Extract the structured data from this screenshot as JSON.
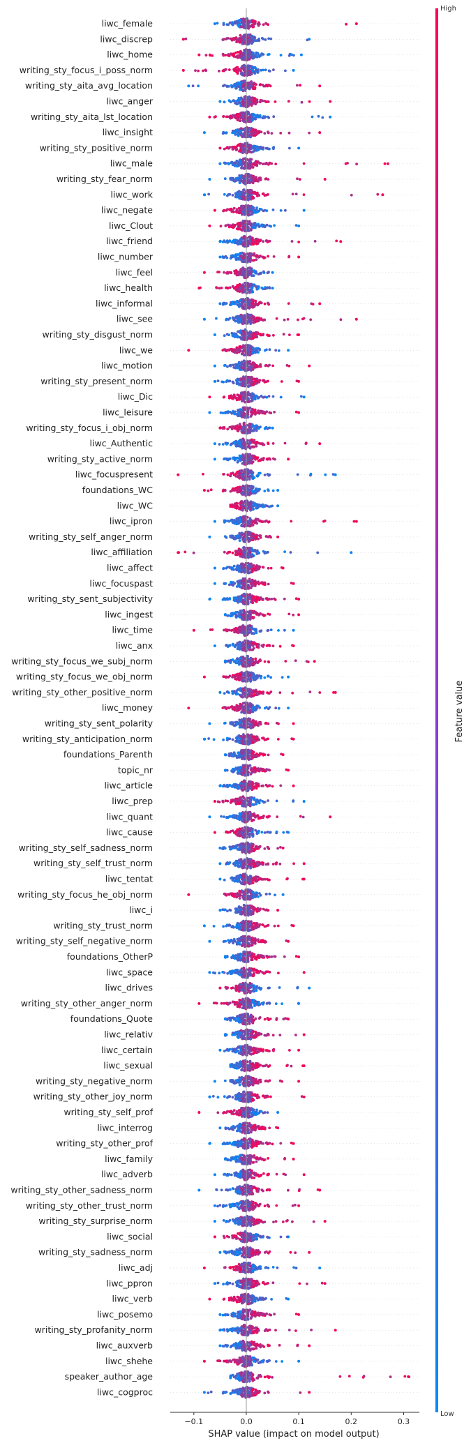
{
  "chart_data": {
    "type": "scatter",
    "subtype": "shap-beeswarm-summary",
    "xlabel": "SHAP value (impact on model output)",
    "xticks": [
      -0.1,
      0.0,
      0.1,
      0.2,
      0.3
    ],
    "xlim": [
      -0.145,
      0.33
    ],
    "colorbar": {
      "label": "Feature value",
      "high_label": "High",
      "low_label": "Low",
      "high_color": "#ff0052",
      "low_color": "#008bfb"
    },
    "grid": false,
    "features": [
      {
        "name": "liwc_female",
        "min": -0.06,
        "max": 0.21,
        "high": "right"
      },
      {
        "name": "liwc_discrep",
        "min": -0.12,
        "max": 0.12,
        "high": "left"
      },
      {
        "name": "liwc_home",
        "min": -0.09,
        "max": 0.105,
        "high": "left"
      },
      {
        "name": "writing_sty_focus_i_poss_norm",
        "min": -0.12,
        "max": 0.09,
        "high": "left"
      },
      {
        "name": "writing_sty_aita_avg_location",
        "min": -0.11,
        "max": 0.14,
        "high": "right"
      },
      {
        "name": "liwc_anger",
        "min": -0.05,
        "max": 0.16,
        "high": "right"
      },
      {
        "name": "writing_sty_aita_lst_location",
        "min": -0.07,
        "max": 0.16,
        "high": "left"
      },
      {
        "name": "liwc_insight",
        "min": -0.08,
        "max": 0.14,
        "high": "right"
      },
      {
        "name": "writing_sty_positive_norm",
        "min": -0.05,
        "max": 0.1,
        "high": "left"
      },
      {
        "name": "liwc_male",
        "min": -0.05,
        "max": 0.27,
        "high": "right"
      },
      {
        "name": "writing_sty_fear_norm",
        "min": -0.07,
        "max": 0.15,
        "high": "right"
      },
      {
        "name": "liwc_work",
        "min": -0.08,
        "max": 0.26,
        "high": "right"
      },
      {
        "name": "liwc_negate",
        "min": -0.06,
        "max": 0.11,
        "high": "left"
      },
      {
        "name": "liwc_Clout",
        "min": -0.07,
        "max": 0.1,
        "high": "left"
      },
      {
        "name": "liwc_friend",
        "min": -0.05,
        "max": 0.18,
        "high": "right"
      },
      {
        "name": "liwc_number",
        "min": -0.05,
        "max": 0.1,
        "high": "right"
      },
      {
        "name": "liwc_feel",
        "min": -0.08,
        "max": 0.05,
        "high": "left"
      },
      {
        "name": "liwc_health",
        "min": -0.09,
        "max": 0.05,
        "high": "left"
      },
      {
        "name": "liwc_informal",
        "min": -0.05,
        "max": 0.14,
        "high": "right"
      },
      {
        "name": "liwc_see",
        "min": -0.08,
        "max": 0.21,
        "high": "right"
      },
      {
        "name": "writing_sty_disgust_norm",
        "min": -0.06,
        "max": 0.1,
        "high": "right"
      },
      {
        "name": "liwc_we",
        "min": -0.11,
        "max": 0.08,
        "high": "left"
      },
      {
        "name": "liwc_motion",
        "min": -0.06,
        "max": 0.12,
        "high": "right"
      },
      {
        "name": "writing_sty_present_norm",
        "min": -0.06,
        "max": 0.1,
        "high": "right"
      },
      {
        "name": "liwc_Dic",
        "min": -0.07,
        "max": 0.11,
        "high": "left"
      },
      {
        "name": "liwc_leisure",
        "min": -0.07,
        "max": 0.1,
        "high": "right"
      },
      {
        "name": "writing_sty_focus_i_obj_norm",
        "min": -0.05,
        "max": 0.05,
        "high": "left"
      },
      {
        "name": "liwc_Authentic",
        "min": -0.06,
        "max": 0.14,
        "high": "right"
      },
      {
        "name": "writing_sty_active_norm",
        "min": -0.06,
        "max": 0.08,
        "high": "right"
      },
      {
        "name": "liwc_focuspresent",
        "min": -0.13,
        "max": 0.17,
        "high": "left"
      },
      {
        "name": "foundations_WC",
        "min": -0.08,
        "max": 0.06,
        "high": "left"
      },
      {
        "name": "liwc_WC",
        "min": -0.03,
        "max": 0.06,
        "high": "left"
      },
      {
        "name": "liwc_ipron",
        "min": -0.06,
        "max": 0.21,
        "high": "right"
      },
      {
        "name": "writing_sty_self_anger_norm",
        "min": -0.07,
        "max": 0.06,
        "high": "right"
      },
      {
        "name": "liwc_affiliation",
        "min": -0.13,
        "max": 0.2,
        "high": "left"
      },
      {
        "name": "liwc_affect",
        "min": -0.06,
        "max": 0.07,
        "high": "right"
      },
      {
        "name": "liwc_focuspast",
        "min": -0.06,
        "max": 0.09,
        "high": "right"
      },
      {
        "name": "writing_sty_sent_subjectivity",
        "min": -0.07,
        "max": 0.1,
        "high": "right"
      },
      {
        "name": "liwc_ingest",
        "min": -0.04,
        "max": 0.1,
        "high": "right"
      },
      {
        "name": "liwc_time",
        "min": -0.1,
        "max": 0.09,
        "high": "left"
      },
      {
        "name": "liwc_anx",
        "min": -0.06,
        "max": 0.09,
        "high": "right"
      },
      {
        "name": "writing_sty_focus_we_subj_norm",
        "min": -0.04,
        "max": 0.13,
        "high": "right"
      },
      {
        "name": "writing_sty_focus_we_obj_norm",
        "min": -0.08,
        "max": 0.08,
        "high": "left"
      },
      {
        "name": "writing_sty_other_positive_norm",
        "min": -0.05,
        "max": 0.17,
        "high": "right"
      },
      {
        "name": "liwc_money",
        "min": -0.11,
        "max": 0.08,
        "high": "left"
      },
      {
        "name": "writing_sty_sent_polarity",
        "min": -0.07,
        "max": 0.09,
        "high": "right"
      },
      {
        "name": "writing_sty_anticipation_norm",
        "min": -0.08,
        "max": 0.09,
        "high": "right"
      },
      {
        "name": "foundations_Parenth",
        "min": -0.04,
        "max": 0.07,
        "high": "right"
      },
      {
        "name": "topic_nr",
        "min": -0.04,
        "max": 0.08,
        "high": "right"
      },
      {
        "name": "liwc_article",
        "min": -0.05,
        "max": 0.09,
        "high": "right"
      },
      {
        "name": "liwc_prep",
        "min": -0.06,
        "max": 0.11,
        "high": "left"
      },
      {
        "name": "liwc_quant",
        "min": -0.07,
        "max": 0.16,
        "high": "right"
      },
      {
        "name": "liwc_cause",
        "min": -0.06,
        "max": 0.08,
        "high": "left"
      },
      {
        "name": "writing_sty_self_sadness_norm",
        "min": -0.05,
        "max": 0.07,
        "high": "right"
      },
      {
        "name": "writing_sty_self_trust_norm",
        "min": -0.05,
        "max": 0.11,
        "high": "right"
      },
      {
        "name": "liwc_tentat",
        "min": -0.05,
        "max": 0.11,
        "high": "right"
      },
      {
        "name": "writing_sty_focus_he_obj_norm",
        "min": -0.11,
        "max": 0.07,
        "high": "left"
      },
      {
        "name": "liwc_i",
        "min": -0.05,
        "max": 0.06,
        "high": "right"
      },
      {
        "name": "writing_sty_trust_norm",
        "min": -0.08,
        "max": 0.09,
        "high": "right"
      },
      {
        "name": "writing_sty_self_negative_norm",
        "min": -0.07,
        "max": 0.08,
        "high": "right"
      },
      {
        "name": "foundations_OtherP",
        "min": -0.04,
        "max": 0.1,
        "high": "right"
      },
      {
        "name": "liwc_space",
        "min": -0.07,
        "max": 0.11,
        "high": "right"
      },
      {
        "name": "liwc_drives",
        "min": -0.05,
        "max": 0.12,
        "high": "left"
      },
      {
        "name": "writing_sty_other_anger_norm",
        "min": -0.09,
        "max": 0.1,
        "high": "left"
      },
      {
        "name": "foundations_Quote",
        "min": -0.04,
        "max": 0.08,
        "high": "right"
      },
      {
        "name": "liwc_relativ",
        "min": -0.04,
        "max": 0.11,
        "high": "right"
      },
      {
        "name": "liwc_certain",
        "min": -0.05,
        "max": 0.1,
        "high": "right"
      },
      {
        "name": "liwc_sexual",
        "min": -0.03,
        "max": 0.11,
        "high": "right"
      },
      {
        "name": "writing_sty_negative_norm",
        "min": -0.06,
        "max": 0.1,
        "high": "right"
      },
      {
        "name": "writing_sty_other_joy_norm",
        "min": -0.07,
        "max": 0.11,
        "high": "right"
      },
      {
        "name": "writing_sty_self_prof",
        "min": -0.09,
        "max": 0.06,
        "high": "left"
      },
      {
        "name": "liwc_interrog",
        "min": -0.05,
        "max": 0.06,
        "high": "right"
      },
      {
        "name": "writing_sty_other_prof",
        "min": -0.07,
        "max": 0.09,
        "high": "right"
      },
      {
        "name": "liwc_family",
        "min": -0.04,
        "max": 0.09,
        "high": "right"
      },
      {
        "name": "liwc_adverb",
        "min": -0.06,
        "max": 0.11,
        "high": "right"
      },
      {
        "name": "writing_sty_other_sadness_norm",
        "min": -0.09,
        "max": 0.14,
        "high": "right"
      },
      {
        "name": "writing_sty_other_trust_norm",
        "min": -0.06,
        "max": 0.1,
        "high": "right"
      },
      {
        "name": "writing_sty_surprise_norm",
        "min": -0.06,
        "max": 0.15,
        "high": "right"
      },
      {
        "name": "liwc_social",
        "min": -0.06,
        "max": 0.08,
        "high": "left"
      },
      {
        "name": "writing_sty_sadness_norm",
        "min": -0.05,
        "max": 0.12,
        "high": "right"
      },
      {
        "name": "liwc_adj",
        "min": -0.08,
        "max": 0.14,
        "high": "left"
      },
      {
        "name": "liwc_ppron",
        "min": -0.06,
        "max": 0.15,
        "high": "right"
      },
      {
        "name": "liwc_verb",
        "min": -0.07,
        "max": 0.08,
        "high": "left"
      },
      {
        "name": "liwc_posemo",
        "min": -0.05,
        "max": 0.1,
        "high": "right"
      },
      {
        "name": "writing_sty_profanity_norm",
        "min": -0.05,
        "max": 0.17,
        "high": "right"
      },
      {
        "name": "liwc_auxverb",
        "min": -0.05,
        "max": 0.12,
        "high": "right"
      },
      {
        "name": "liwc_shehe",
        "min": -0.08,
        "max": 0.1,
        "high": "left"
      },
      {
        "name": "speaker_author_age",
        "min": -0.03,
        "max": 0.31,
        "high": "right"
      },
      {
        "name": "liwc_cogproc",
        "min": -0.08,
        "max": 0.12,
        "high": "right"
      }
    ]
  }
}
